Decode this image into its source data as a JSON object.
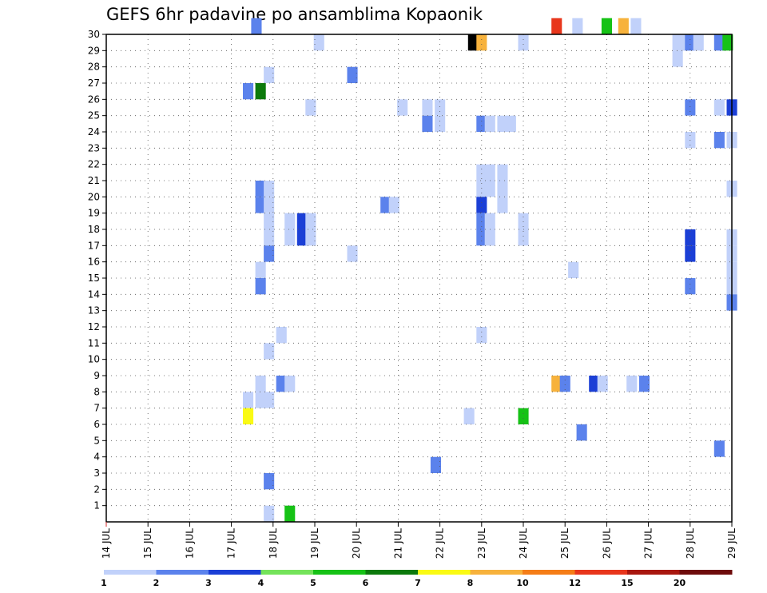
{
  "title": "GEFS 6hr padavine po ansamblima Kopaonik",
  "chart_data": {
    "type": "heatmap",
    "title": "GEFS 6hr padavine po ansamblima Kopaonik",
    "x_tick_labels": [
      "14 JUL",
      "15 JUL",
      "16 JUL",
      "17 JUL",
      "18 JUL",
      "19 JUL",
      "20 JUL",
      "21 JUL",
      "22 JUL",
      "23 JUL",
      "24 JUL",
      "25 JUL",
      "26 JUL",
      "27 JUL",
      "28 JUL",
      "29 JUL"
    ],
    "y_tick_labels": [
      "1",
      "2",
      "3",
      "4",
      "5",
      "6",
      "7",
      "8",
      "9",
      "10",
      "11",
      "12",
      "13",
      "14",
      "15",
      "16",
      "17",
      "18",
      "19",
      "20",
      "21",
      "22",
      "23",
      "24",
      "25",
      "26",
      "27",
      "28",
      "29",
      "30"
    ],
    "xlim_days": [
      14,
      29
    ],
    "ylim": [
      0,
      30
    ],
    "grid": true,
    "colorbar": {
      "colors": [
        "#c1d1fa",
        "#5b82ec",
        "#1b3fd6",
        "#74e35a",
        "#16c216",
        "#0c7a0c",
        "#fafa14",
        "#f7b23c",
        "#f57d17",
        "#e8361c",
        "#a8170f",
        "#6e0b0b"
      ],
      "labels": [
        "1",
        "2",
        "3",
        "4",
        "5",
        "6",
        "7",
        "8",
        "10",
        "12",
        "15",
        "20"
      ]
    },
    "cells": [
      {
        "d": 17.6,
        "m": 30,
        "v": 2
      },
      {
        "d": 24.8,
        "m": 30,
        "v": 10
      },
      {
        "d": 25.3,
        "m": 30,
        "v": 1
      },
      {
        "d": 26.0,
        "m": 30,
        "v": 5
      },
      {
        "d": 26.4,
        "m": 30,
        "v": 8
      },
      {
        "d": 26.7,
        "m": 30,
        "v": 1
      },
      {
        "d": 19.1,
        "m": 29,
        "v": 1
      },
      {
        "d": 22.8,
        "m": 29,
        "v": 20
      },
      {
        "d": 23.0,
        "m": 29,
        "v": 8
      },
      {
        "d": 24.0,
        "m": 29,
        "v": 1
      },
      {
        "d": 27.7,
        "m": 29,
        "v": 1
      },
      {
        "d": 27.9,
        "m": 29,
        "v": 1
      },
      {
        "d": 28.0,
        "m": 29,
        "v": 2
      },
      {
        "d": 28.2,
        "m": 29,
        "v": 1
      },
      {
        "d": 28.7,
        "m": 29,
        "v": 2
      },
      {
        "d": 28.9,
        "m": 29,
        "v": 5
      },
      {
        "d": 27.7,
        "m": 28,
        "v": 1
      },
      {
        "d": 17.9,
        "m": 27,
        "v": 1
      },
      {
        "d": 19.9,
        "m": 27,
        "v": 2
      },
      {
        "d": 17.4,
        "m": 26,
        "v": 2
      },
      {
        "d": 17.7,
        "m": 26,
        "v": 6
      },
      {
        "d": 18.9,
        "m": 25,
        "v": 1
      },
      {
        "d": 21.1,
        "m": 25,
        "v": 1
      },
      {
        "d": 21.7,
        "m": 25,
        "v": 1
      },
      {
        "d": 22.0,
        "m": 25,
        "v": 1
      },
      {
        "d": 28.0,
        "m": 25,
        "v": 2
      },
      {
        "d": 28.7,
        "m": 25,
        "v": 1
      },
      {
        "d": 29.0,
        "m": 25,
        "v": 3
      },
      {
        "d": 21.7,
        "m": 24,
        "v": 2
      },
      {
        "d": 22.0,
        "m": 24,
        "v": 1
      },
      {
        "d": 23.0,
        "m": 24,
        "v": 2
      },
      {
        "d": 23.2,
        "m": 24,
        "v": 1
      },
      {
        "d": 23.5,
        "m": 24,
        "v": 1
      },
      {
        "d": 23.7,
        "m": 24,
        "v": 1
      },
      {
        "d": 28.0,
        "m": 23,
        "v": 1
      },
      {
        "d": 28.7,
        "m": 23,
        "v": 2
      },
      {
        "d": 29.0,
        "m": 23,
        "v": 1
      },
      {
        "d": 23.0,
        "m": 21,
        "v": 1
      },
      {
        "d": 23.2,
        "m": 21,
        "v": 1
      },
      {
        "d": 23.5,
        "m": 21,
        "v": 1
      },
      {
        "d": 23.0,
        "m": 20,
        "v": 1
      },
      {
        "d": 23.2,
        "m": 20,
        "v": 1
      },
      {
        "d": 23.5,
        "m": 20,
        "v": 1
      },
      {
        "d": 17.7,
        "m": 20,
        "v": 2
      },
      {
        "d": 17.9,
        "m": 20,
        "v": 1
      },
      {
        "d": 29.0,
        "m": 20,
        "v": 1
      },
      {
        "d": 17.7,
        "m": 19,
        "v": 2
      },
      {
        "d": 17.9,
        "m": 19,
        "v": 1
      },
      {
        "d": 20.7,
        "m": 19,
        "v": 2
      },
      {
        "d": 20.9,
        "m": 19,
        "v": 1
      },
      {
        "d": 23.0,
        "m": 19,
        "v": 3
      },
      {
        "d": 23.5,
        "m": 19,
        "v": 1
      },
      {
        "d": 17.9,
        "m": 18,
        "v": 1
      },
      {
        "d": 18.4,
        "m": 18,
        "v": 1
      },
      {
        "d": 18.7,
        "m": 18,
        "v": 3
      },
      {
        "d": 18.9,
        "m": 18,
        "v": 1
      },
      {
        "d": 23.0,
        "m": 18,
        "v": 2
      },
      {
        "d": 23.2,
        "m": 18,
        "v": 1
      },
      {
        "d": 24.0,
        "m": 18,
        "v": 1
      },
      {
        "d": 17.9,
        "m": 17,
        "v": 1
      },
      {
        "d": 18.4,
        "m": 17,
        "v": 1
      },
      {
        "d": 18.7,
        "m": 17,
        "v": 3
      },
      {
        "d": 18.9,
        "m": 17,
        "v": 1
      },
      {
        "d": 23.0,
        "m": 17,
        "v": 2
      },
      {
        "d": 23.2,
        "m": 17,
        "v": 1
      },
      {
        "d": 24.0,
        "m": 17,
        "v": 1
      },
      {
        "d": 28.0,
        "m": 17,
        "v": 3
      },
      {
        "d": 29.0,
        "m": 17,
        "v": 1
      },
      {
        "d": 17.9,
        "m": 16,
        "v": 2
      },
      {
        "d": 19.9,
        "m": 16,
        "v": 1
      },
      {
        "d": 28.0,
        "m": 16,
        "v": 3
      },
      {
        "d": 29.0,
        "m": 16,
        "v": 1
      },
      {
        "d": 17.7,
        "m": 15,
        "v": 1
      },
      {
        "d": 25.2,
        "m": 15,
        "v": 1
      },
      {
        "d": 29.0,
        "m": 15,
        "v": 1
      },
      {
        "d": 17.7,
        "m": 14,
        "v": 2
      },
      {
        "d": 28.0,
        "m": 14,
        "v": 2
      },
      {
        "d": 29.0,
        "m": 14,
        "v": 1
      },
      {
        "d": 29.0,
        "m": 13,
        "v": 2
      },
      {
        "d": 18.2,
        "m": 11,
        "v": 1
      },
      {
        "d": 23.0,
        "m": 11,
        "v": 1
      },
      {
        "d": 17.9,
        "m": 10,
        "v": 1
      },
      {
        "d": 17.7,
        "m": 8,
        "v": 1
      },
      {
        "d": 18.2,
        "m": 8,
        "v": 2
      },
      {
        "d": 18.4,
        "m": 8,
        "v": 1
      },
      {
        "d": 24.8,
        "m": 8,
        "v": 8
      },
      {
        "d": 25.0,
        "m": 8,
        "v": 2
      },
      {
        "d": 25.7,
        "m": 8,
        "v": 3
      },
      {
        "d": 25.9,
        "m": 8,
        "v": 1
      },
      {
        "d": 26.6,
        "m": 8,
        "v": 1
      },
      {
        "d": 26.9,
        "m": 8,
        "v": 2
      },
      {
        "d": 17.4,
        "m": 7,
        "v": 1
      },
      {
        "d": 17.7,
        "m": 7,
        "v": 1
      },
      {
        "d": 17.9,
        "m": 7,
        "v": 1
      },
      {
        "d": 17.4,
        "m": 6,
        "v": 7
      },
      {
        "d": 22.7,
        "m": 6,
        "v": 1
      },
      {
        "d": 24.0,
        "m": 6,
        "v": 5
      },
      {
        "d": 25.4,
        "m": 5,
        "v": 2
      },
      {
        "d": 28.7,
        "m": 4,
        "v": 2
      },
      {
        "d": 21.9,
        "m": 3,
        "v": 2
      },
      {
        "d": 17.9,
        "m": 2,
        "v": 2
      },
      {
        "d": 17.9,
        "m": 0,
        "v": 1
      },
      {
        "d": 18.4,
        "m": 0,
        "v": 5
      }
    ]
  }
}
